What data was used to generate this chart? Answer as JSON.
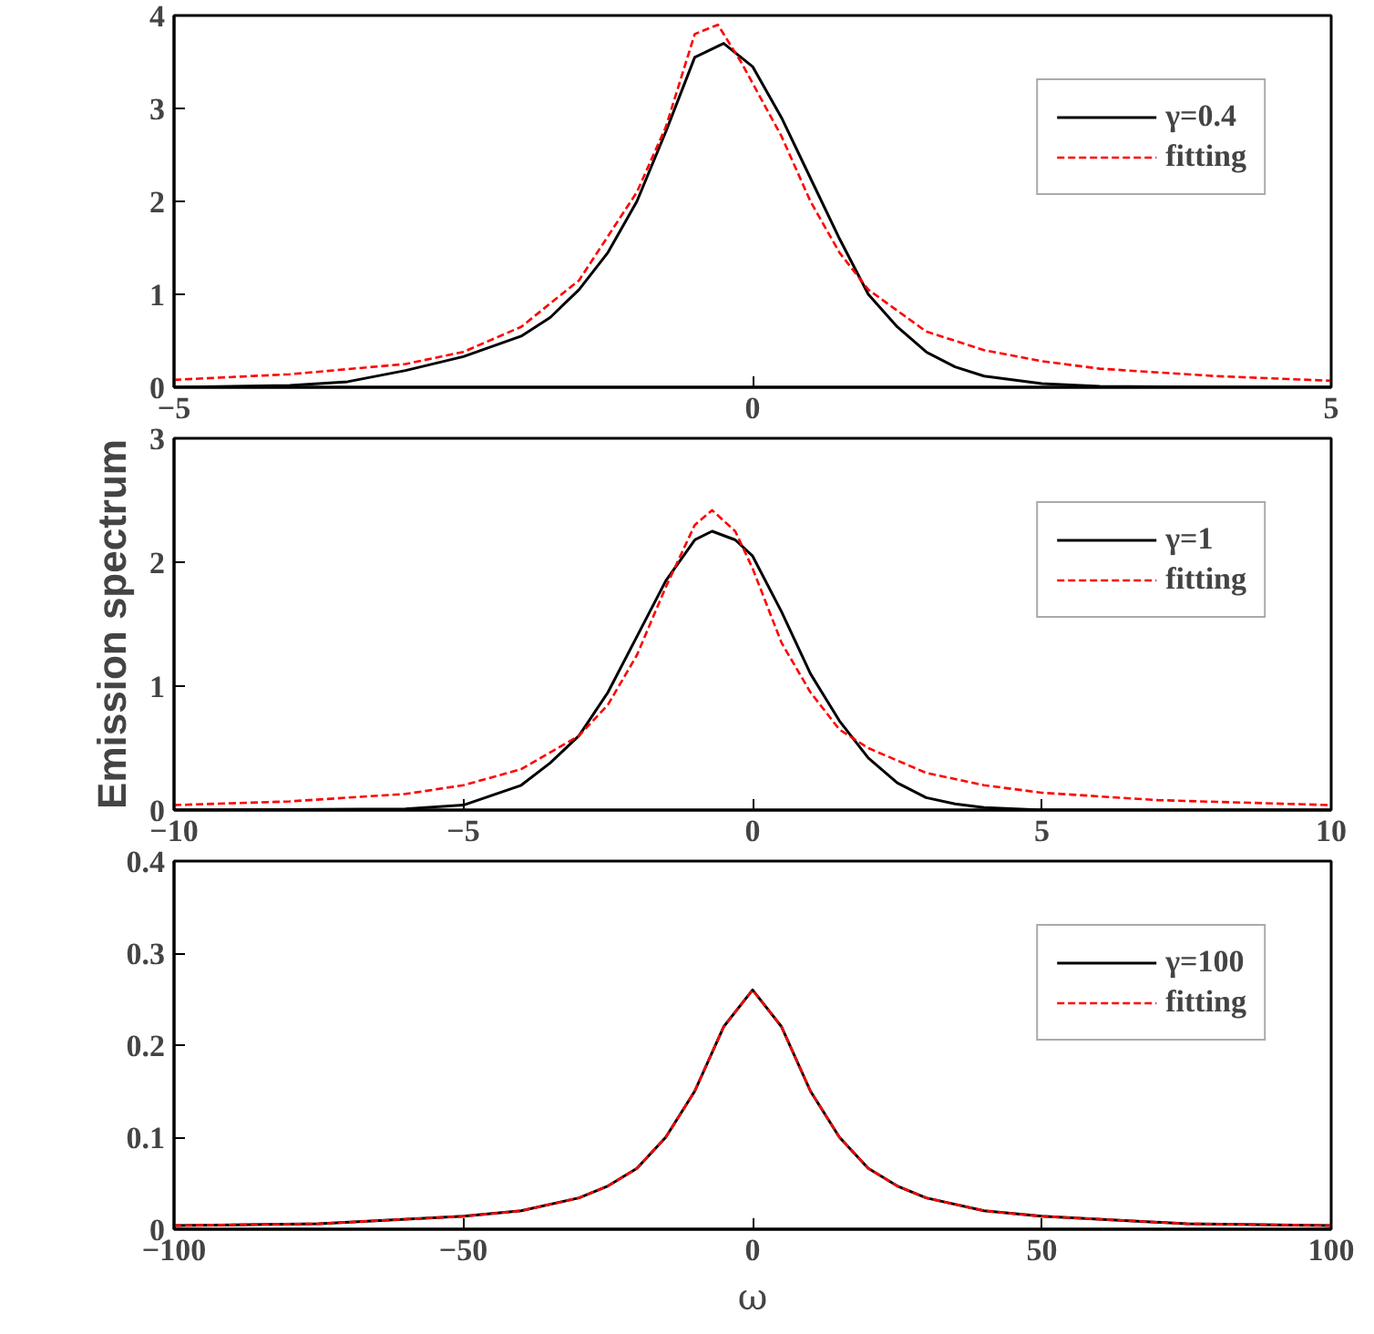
{
  "chart_data": [
    {
      "type": "line",
      "xlim": [
        -5,
        5
      ],
      "xticks": [
        -5,
        0,
        5
      ],
      "ylim": [
        0,
        4
      ],
      "yticks": [
        0,
        1,
        2,
        3,
        4
      ],
      "legend": "top right",
      "grid": false,
      "series": [
        {
          "name": "γ=0.4",
          "color": "#000000",
          "line_style": "solid",
          "x": [
            -5,
            -4,
            -3.5,
            -3,
            -2.5,
            -2,
            -1.75,
            -1.5,
            -1.25,
            -1,
            -0.75,
            -0.5,
            -0.25,
            0,
            0.25,
            0.5,
            0.75,
            1,
            1.25,
            1.5,
            1.75,
            2,
            2.5,
            3,
            4,
            5
          ],
          "values": [
            0,
            0.02,
            0.06,
            0.18,
            0.33,
            0.55,
            0.75,
            1.05,
            1.45,
            2.0,
            2.75,
            3.55,
            3.7,
            3.45,
            2.9,
            2.25,
            1.6,
            1.0,
            0.65,
            0.38,
            0.22,
            0.12,
            0.04,
            0.01,
            0,
            0
          ]
        },
        {
          "name": "fitting",
          "color": "#ff0000",
          "line_style": "dashed",
          "x": [
            -5,
            -4,
            -3,
            -2.5,
            -2,
            -1.5,
            -1,
            -0.75,
            -0.5,
            -0.3,
            -0.1,
            0.25,
            0.5,
            0.75,
            1,
            1.5,
            2,
            2.5,
            3,
            4,
            5
          ],
          "values": [
            0.08,
            0.14,
            0.25,
            0.38,
            0.65,
            1.15,
            2.1,
            2.8,
            3.8,
            3.9,
            3.5,
            2.7,
            2.0,
            1.45,
            1.05,
            0.6,
            0.4,
            0.28,
            0.2,
            0.12,
            0.07
          ]
        }
      ]
    },
    {
      "type": "line",
      "xlim": [
        -10,
        10
      ],
      "xticks": [
        -10,
        -5,
        0,
        5,
        10
      ],
      "ylim": [
        0,
        3
      ],
      "yticks": [
        0,
        1,
        2,
        3
      ],
      "ylabel": "Emission spectrum",
      "legend": "top right",
      "grid": false,
      "series": [
        {
          "name": "γ=1",
          "color": "#000000",
          "line_style": "solid",
          "x": [
            -10,
            -6,
            -5,
            -4,
            -3.5,
            -3,
            -2.5,
            -2,
            -1.5,
            -1,
            -0.7,
            -0.3,
            0,
            0.5,
            1,
            1.5,
            2,
            2.5,
            3,
            3.5,
            4,
            5,
            10
          ],
          "values": [
            0,
            0.01,
            0.04,
            0.2,
            0.38,
            0.6,
            0.95,
            1.4,
            1.85,
            2.18,
            2.25,
            2.18,
            2.05,
            1.6,
            1.1,
            0.72,
            0.42,
            0.22,
            0.1,
            0.05,
            0.02,
            0,
            0
          ]
        },
        {
          "name": "fitting",
          "color": "#ff0000",
          "line_style": "dashed",
          "x": [
            -10,
            -8,
            -6,
            -5,
            -4,
            -3,
            -2.5,
            -2,
            -1.5,
            -1,
            -0.7,
            -0.3,
            0,
            0.5,
            1,
            1.5,
            2,
            3,
            4,
            5,
            7,
            10
          ],
          "values": [
            0.04,
            0.07,
            0.13,
            0.2,
            0.33,
            0.6,
            0.85,
            1.25,
            1.8,
            2.3,
            2.42,
            2.25,
            1.95,
            1.35,
            0.95,
            0.65,
            0.5,
            0.3,
            0.2,
            0.14,
            0.08,
            0.04
          ]
        }
      ]
    },
    {
      "type": "line",
      "xlim": [
        -100,
        100
      ],
      "xticks": [
        -100,
        -50,
        0,
        50,
        100
      ],
      "ylim": [
        0,
        0.4
      ],
      "yticks": [
        0,
        0.1,
        0.2,
        0.3,
        0.4
      ],
      "xlabel": "ω",
      "legend": "top right",
      "grid": false,
      "series": [
        {
          "name": "γ=100",
          "color": "#000000",
          "line_style": "solid",
          "x": [
            -100,
            -75,
            -50,
            -40,
            -30,
            -25,
            -20,
            -15,
            -10,
            -5,
            0,
            5,
            10,
            15,
            20,
            25,
            30,
            40,
            50,
            75,
            100
          ],
          "values": [
            0.004,
            0.006,
            0.014,
            0.02,
            0.034,
            0.047,
            0.066,
            0.1,
            0.15,
            0.22,
            0.26,
            0.22,
            0.15,
            0.1,
            0.066,
            0.047,
            0.034,
            0.02,
            0.014,
            0.006,
            0.004
          ]
        },
        {
          "name": "fitting",
          "color": "#ff0000",
          "line_style": "dashed",
          "x": [
            -100,
            -75,
            -50,
            -40,
            -30,
            -25,
            -20,
            -15,
            -10,
            -5,
            0,
            5,
            10,
            15,
            20,
            25,
            30,
            40,
            50,
            75,
            100
          ],
          "values": [
            0.004,
            0.006,
            0.014,
            0.02,
            0.034,
            0.047,
            0.066,
            0.1,
            0.15,
            0.22,
            0.26,
            0.22,
            0.15,
            0.1,
            0.066,
            0.047,
            0.034,
            0.02,
            0.014,
            0.006,
            0.004
          ]
        }
      ]
    }
  ]
}
